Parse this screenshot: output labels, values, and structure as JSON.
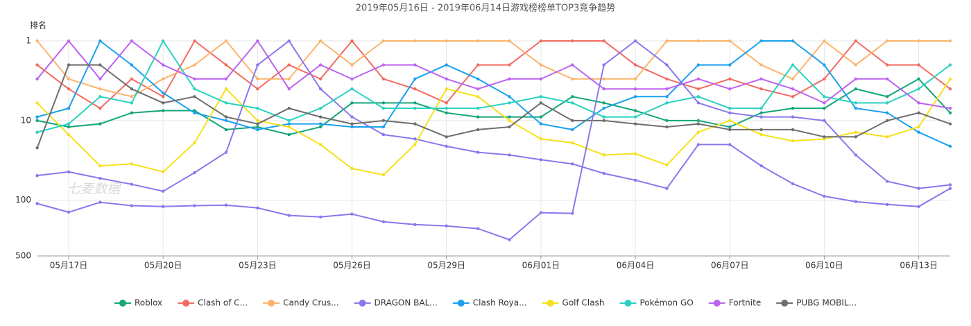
{
  "chart_data": {
    "type": "line",
    "title": "2019年05月16日 - 2019年06月14日游戏榜榜单TOP3竞争趋势",
    "y_label": "排名",
    "watermark": "七麦数据",
    "log_scale": true,
    "y_inverted": true,
    "grid": true,
    "legend": "bottom",
    "ylim": [
      1,
      500
    ],
    "yticks": [
      1,
      10,
      100,
      500
    ],
    "categories": [
      null,
      "05月17日",
      null,
      null,
      "05月20日",
      null,
      null,
      "05月23日",
      null,
      null,
      "05月26日",
      null,
      null,
      "05月29日",
      null,
      null,
      "06月01日",
      null,
      null,
      "06月04日",
      null,
      null,
      "06月07日",
      null,
      null,
      "06月10日",
      null,
      null,
      "06月13日",
      null
    ],
    "series": [
      {
        "name": "Roblox",
        "color": "#14a57a",
        "values": [
          10,
          12,
          11,
          8,
          7.5,
          7.5,
          13,
          12,
          15,
          12,
          6,
          6,
          6,
          8,
          9,
          9,
          9,
          5,
          6,
          7.5,
          10,
          10,
          12,
          8,
          7,
          7,
          4,
          5,
          3,
          8
        ]
      },
      {
        "name": "Clash of C...",
        "color": "#f26b60",
        "values": [
          2,
          4,
          7,
          3,
          5,
          1,
          2,
          4,
          2,
          3,
          1,
          3,
          4,
          6,
          2,
          2,
          1,
          1,
          1,
          2,
          3,
          4,
          3,
          4,
          5,
          3,
          1,
          2,
          2,
          4
        ]
      },
      {
        "name": "Candy Crus...",
        "color": "#fbb46b",
        "values": [
          1,
          3,
          4,
          5,
          3,
          2,
          1,
          3,
          3,
          1,
          2,
          1,
          1,
          1,
          1,
          1,
          2,
          3,
          3,
          3,
          1,
          1,
          1,
          2,
          3,
          1,
          2,
          1,
          1,
          1
        ]
      },
      {
        "name": "DRAGON BAL...",
        "color": "#8878ee",
        "values": [
          49,
          44,
          53,
          63,
          77,
          45,
          25,
          2,
          1,
          4,
          9,
          15,
          17,
          21,
          25,
          27,
          31,
          35,
          46,
          56,
          71,
          20,
          20,
          37,
          62,
          89,
          104,
          113,
          120,
          71
        ]
      },
      {
        "name": "Clash Roya...",
        "color": "#1aa0ee",
        "values": [
          9,
          7,
          1,
          2,
          4.5,
          8,
          10,
          13,
          11,
          11,
          12,
          12,
          3,
          2,
          3,
          5,
          11,
          13,
          7,
          5,
          5,
          2,
          2,
          1,
          1,
          2,
          7,
          8,
          14,
          21
        ]
      },
      {
        "name": "Golf Clash",
        "color": "#f6e01a",
        "values": [
          6,
          15,
          37,
          35,
          44,
          19,
          4,
          10,
          12,
          20,
          40,
          48,
          20,
          4,
          5,
          10,
          17,
          19,
          27,
          26,
          36,
          14,
          10,
          15,
          18,
          17,
          14,
          16,
          12,
          3
        ]
      },
      {
        "name": "Pokémon GO",
        "color": "#2ad2c0",
        "values": [
          14,
          11,
          5,
          6,
          1,
          4,
          6,
          7,
          10,
          7,
          4,
          7,
          7,
          7,
          7,
          6,
          5,
          6,
          9,
          9,
          6,
          5,
          7,
          7,
          2,
          5,
          6,
          6,
          4,
          2
        ]
      },
      {
        "name": "Fortnite",
        "color": "#bd63f0",
        "values": [
          3,
          1,
          3,
          1,
          2,
          3,
          3,
          1,
          4,
          2,
          3,
          2,
          2,
          3,
          4,
          3,
          3,
          2,
          4,
          4,
          4,
          3,
          4,
          3,
          4,
          6,
          3,
          3,
          6,
          7
        ]
      },
      {
        "name": "PUBG MOBIL...",
        "color": "#6e6e6e",
        "values": [
          22,
          2,
          2,
          4,
          6,
          5,
          9,
          11,
          7,
          9,
          11,
          10,
          11,
          16,
          13,
          12,
          6,
          10,
          10,
          11,
          12,
          11,
          13,
          13,
          13,
          16,
          16,
          10,
          8,
          11
        ]
      },
      {
        "color": "#8878ee",
        "values": [
          110,
          141,
          106,
          117,
          120,
          117,
          115,
          125,
          155,
          162,
          149,
          186,
          202,
          210,
          227,
          313,
          143,
          146,
          2,
          1,
          2,
          6,
          8,
          9,
          9,
          10,
          27,
          58,
          71,
          64
        ]
      }
    ]
  }
}
